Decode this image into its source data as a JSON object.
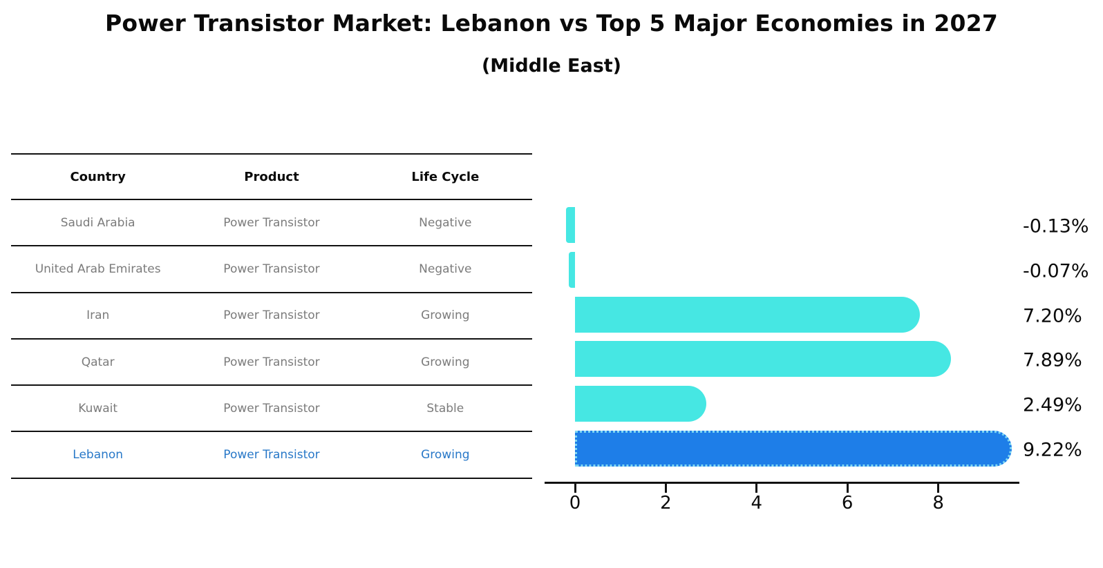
{
  "title": "Power Transistor Market: Lebanon vs Top 5 Major Economies in 2027",
  "subtitle": "(Middle East)",
  "table": {
    "headers": [
      "Country",
      "Product",
      "Life Cycle"
    ],
    "rows": [
      {
        "country": "Saudi Arabia",
        "product": "Power Transistor",
        "life_cycle": "Negative",
        "highlight": false
      },
      {
        "country": "United Arab Emirates",
        "product": "Power Transistor",
        "life_cycle": "Negative",
        "highlight": false
      },
      {
        "country": "Iran",
        "product": "Power Transistor",
        "life_cycle": "Growing",
        "highlight": false
      },
      {
        "country": "Qatar",
        "product": "Power Transistor",
        "life_cycle": "Growing",
        "highlight": false
      },
      {
        "country": "Kuwait",
        "product": "Power Transistor",
        "life_cycle": "Stable",
        "highlight": false
      },
      {
        "country": "Lebanon",
        "product": "Power Transistor",
        "life_cycle": "Growing",
        "highlight": true
      }
    ]
  },
  "chart_data": {
    "type": "bar",
    "orientation": "horizontal",
    "categories": [
      "Saudi Arabia",
      "United Arab Emirates",
      "Iran",
      "Qatar",
      "Kuwait",
      "Lebanon"
    ],
    "values": [
      -0.13,
      -0.07,
      7.2,
      7.89,
      2.49,
      9.22
    ],
    "value_labels": [
      "-0.13%",
      "-0.07%",
      "7.20%",
      "7.89%",
      "2.49%",
      "9.22%"
    ],
    "x_ticks": [
      "0",
      "2",
      "4",
      "6",
      "8"
    ],
    "x_tick_values": [
      0,
      2,
      4,
      6,
      8
    ],
    "xlim": [
      -0.67,
      9.79
    ],
    "grid": false,
    "legend": "none",
    "bar_color": "#46E7E3",
    "highlight_index": 5,
    "highlight_color": "#1E7EE8",
    "highlight_border_color": "#7FD8F2",
    "axis_color": "#111111",
    "label_color": "#0a0a0a"
  }
}
